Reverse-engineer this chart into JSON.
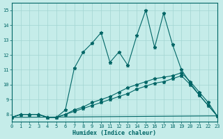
{
  "xlabel": "Humidex (Indice chaleur)",
  "background_color": "#c5ece9",
  "grid_color": "#a2d5d2",
  "line_color": "#006666",
  "xlim": [
    0,
    23
  ],
  "ylim": [
    7.5,
    15.5
  ],
  "yticks": [
    8,
    9,
    10,
    11,
    12,
    13,
    14,
    15
  ],
  "xticks": [
    0,
    1,
    2,
    3,
    4,
    5,
    6,
    7,
    8,
    9,
    10,
    11,
    12,
    13,
    14,
    15,
    16,
    17,
    18,
    19,
    20,
    21,
    22,
    23
  ],
  "line1_x": [
    0,
    1,
    2,
    3,
    4,
    5,
    6,
    7,
    8,
    9,
    10,
    11,
    12,
    13,
    14,
    15,
    16,
    17,
    18,
    19,
    20,
    21,
    22,
    23
  ],
  "line1_y": [
    7.8,
    8.0,
    8.0,
    8.0,
    7.8,
    7.8,
    8.3,
    11.1,
    12.2,
    12.8,
    13.5,
    11.5,
    12.2,
    11.3,
    13.3,
    15.0,
    12.5,
    14.8,
    12.7,
    11.0,
    10.1,
    9.3,
    8.6,
    7.9
  ],
  "line2_x": [
    0,
    1,
    2,
    3,
    4,
    5,
    6,
    7,
    8,
    9,
    10,
    11,
    12,
    13,
    14,
    15,
    16,
    17,
    18,
    19,
    20,
    21,
    22,
    23
  ],
  "line2_y": [
    7.8,
    8.0,
    8.0,
    8.0,
    7.8,
    7.8,
    8.0,
    8.3,
    8.5,
    8.8,
    9.0,
    9.2,
    9.5,
    9.8,
    10.0,
    10.2,
    10.4,
    10.5,
    10.6,
    10.8,
    10.2,
    9.5,
    8.8,
    7.9
  ],
  "line3_x": [
    0,
    23
  ],
  "line3_y": [
    7.8,
    7.9
  ],
  "line4_x": [
    0,
    1,
    2,
    3,
    4,
    5,
    6,
    7,
    8,
    9,
    10,
    11,
    12,
    13,
    14,
    15,
    16,
    17,
    18,
    19,
    20,
    21,
    22,
    23
  ],
  "line4_y": [
    7.8,
    8.0,
    8.0,
    8.0,
    7.8,
    7.8,
    8.0,
    8.2,
    8.4,
    8.6,
    8.8,
    9.0,
    9.2,
    9.4,
    9.7,
    9.9,
    10.1,
    10.2,
    10.4,
    10.6,
    10.0,
    9.3,
    8.6,
    7.9
  ]
}
